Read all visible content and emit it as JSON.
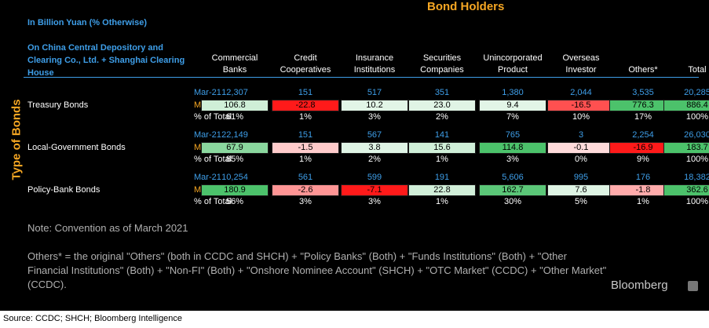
{
  "header": {
    "unit_note": "In Billion Yuan (% Otherwise)",
    "source_desc": "On China Central Depository and Clearing Co., Ltd. + Shanghai Clearing House",
    "title": "Bond Holders",
    "yaxis_label": "Type of Bonds"
  },
  "colors": {
    "negative": "#ff1a1a",
    "positive": "#4cc26b",
    "neutral": "#ffffff",
    "accent": "#3e9ee8",
    "title": "#f5a623"
  },
  "chart_data": {
    "type": "table",
    "title": "Bond Holders",
    "columns": [
      "Commercial Banks",
      "Credit Cooperatives",
      "Insurance Institutions",
      "Securities Companies",
      "Unincorporated Product",
      "Overseas Investor",
      "Others*",
      "Total"
    ],
    "row_labels": [
      "Mar-21",
      "MoM",
      "% of Total"
    ],
    "groups": [
      {
        "name": "Treasury Bonds",
        "mar21": [
          "12,307",
          "151",
          "517",
          "351",
          "1,380",
          "2,044",
          "3,535",
          "20,285"
        ],
        "mom": [
          106.8,
          -22.8,
          10.2,
          23.0,
          9.4,
          -16.5,
          776.3,
          886.4
        ],
        "mom_text": [
          "106.8",
          "-22.8",
          "10.2",
          "23.0",
          "9.4",
          "-16.5",
          "776.3",
          "886.4"
        ],
        "pct": [
          "61%",
          "1%",
          "3%",
          "2%",
          "7%",
          "10%",
          "17%",
          "100%"
        ]
      },
      {
        "name": "Local-Government Bonds",
        "mar21": [
          "22,149",
          "151",
          "567",
          "141",
          "765",
          "3",
          "2,254",
          "26,030"
        ],
        "mom": [
          67.9,
          -1.5,
          3.8,
          15.6,
          114.8,
          -0.1,
          -16.9,
          183.7
        ],
        "mom_text": [
          "67.9",
          "-1.5",
          "3.8",
          "15.6",
          "114.8",
          "-0.1",
          "-16.9",
          "183.7"
        ],
        "pct": [
          "85%",
          "1%",
          "2%",
          "1%",
          "3%",
          "0%",
          "9%",
          "100%"
        ]
      },
      {
        "name": "Policy-Bank Bonds",
        "mar21": [
          "10,254",
          "561",
          "599",
          "191",
          "5,606",
          "995",
          "176",
          "18,382"
        ],
        "mom": [
          180.9,
          -2.6,
          -7.1,
          22.8,
          162.7,
          7.6,
          -1.8,
          362.6
        ],
        "mom_text": [
          "180.9",
          "-2.6",
          "-7.1",
          "22.8",
          "162.7",
          "7.6",
          "-1.8",
          "362.6"
        ],
        "pct": [
          "56%",
          "3%",
          "3%",
          "1%",
          "30%",
          "5%",
          "1%",
          "100%"
        ]
      }
    ]
  },
  "notes": {
    "convention": "Note: Convention as of March 2021",
    "others": "Others* = the original \"Others\" (both in CCDC and SHCH) + \"Policy Banks\" (Both) + \"Funds Institutions\" (Both) + \"Other Financial Institutions\" (Both) + \"Non-FI\" (Both) + \"Onshore Nominee Account\" (SHCH) + \"OTC Market\" (CCDC) + \"Other Market\" (CCDC)."
  },
  "branding": {
    "name": "Bloomberg",
    "icon": "bloomberg-terminal-icon"
  },
  "source": "Source: CCDC; SHCH; Bloomberg Intelligence"
}
